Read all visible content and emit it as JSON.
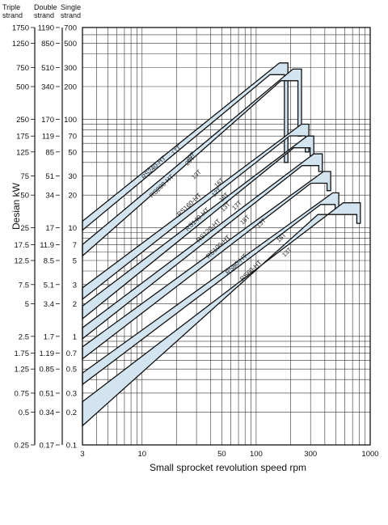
{
  "chart_data": {
    "type": "line",
    "title": "",
    "xlabel": "Small sprocket revolution speed rpm",
    "ylabel": "Desian kW",
    "x_scale": "log",
    "y_scale": "log",
    "xlim": [
      3,
      1000
    ],
    "ylim": [
      0.1,
      700
    ],
    "grid": true,
    "x_ticks": [
      "3",
      "10",
      "50",
      "100",
      "300",
      "1000"
    ],
    "y_columns": [
      {
        "header": "Triple strand",
        "ticks": [
          "1750",
          "1250",
          "750",
          "500",
          "250",
          "175",
          "125",
          "75",
          "50",
          "25",
          "17.5",
          "12.5",
          "7.5",
          "5",
          "2.5",
          "1.75",
          "1.25",
          "0.75",
          "0.5",
          "0.25"
        ]
      },
      {
        "header": "Double strand",
        "ticks": [
          "1190",
          "850",
          "510",
          "340",
          "170",
          "119",
          "85",
          "51",
          "34",
          "17",
          "11.9",
          "8.5",
          "5.1",
          "3.4",
          "1.7",
          "1.19",
          "0.85",
          "0.51",
          "0.34",
          "0.17"
        ]
      },
      {
        "header": "Single strand",
        "ticks": [
          "700",
          "500",
          "300",
          "200",
          "100",
          "70",
          "50",
          "30",
          "20",
          "10",
          "7",
          "5",
          "3",
          "2",
          "1",
          "0.7",
          "0.5",
          "0.3",
          "0.2",
          "0.1"
        ]
      }
    ],
    "series": [
      {
        "name": "RS240-HT",
        "teeth_low": "",
        "teeth_high": "20T",
        "band_fill": "#d3e4f1"
      },
      {
        "name": "RS200-HT",
        "teeth_low": "17T",
        "teeth_high": "20T",
        "band_fill": "#d3e4f1"
      },
      {
        "name": "RS160-HT",
        "teeth_low": "13T",
        "teeth_high": "16T",
        "band_fill": "#d3e4f1"
      },
      {
        "name": "RS140-HT",
        "teeth_low": "17T",
        "teeth_high": "16T",
        "band_fill": "#d3e4f1"
      },
      {
        "name": "RS120-HT",
        "teeth_low": "13T",
        "teeth_high": "17T",
        "band_fill": "#d3e4f1"
      },
      {
        "name": "RS100-HT",
        "teeth_low": "18T",
        "teeth_high": "13T",
        "band_fill": "#d3e4f1"
      },
      {
        "name": "RS80-HT",
        "teeth_low": "13T",
        "teeth_high": "",
        "band_fill": "#d3e4f1"
      },
      {
        "name": "RS60-HT",
        "teeth_low": "13T",
        "teeth_high": "18T",
        "band_fill": "#d3e4f1"
      }
    ]
  }
}
